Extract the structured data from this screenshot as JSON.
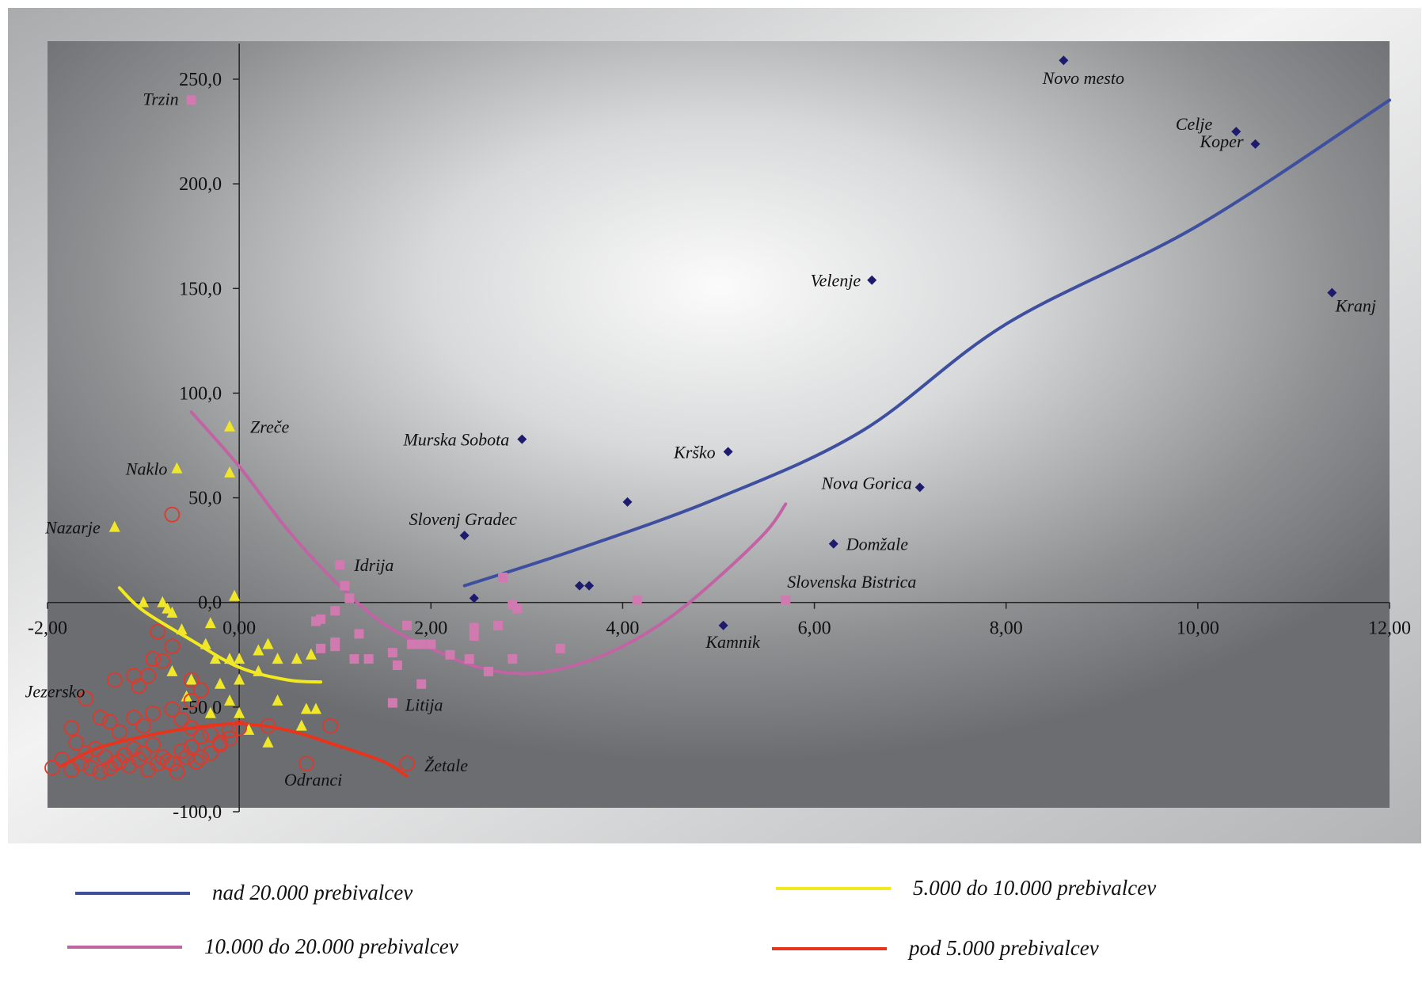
{
  "chart_data": {
    "type": "scatter",
    "title": "",
    "xlabel": "",
    "ylabel": "",
    "xlim": [
      -2,
      12
    ],
    "ylim": [
      -100,
      260
    ],
    "x_ticks": [
      "-2,00",
      "0,00",
      "2,00",
      "4,00",
      "6,00",
      "8,00",
      "10,00",
      "12,00"
    ],
    "y_ticks": [
      "-100,0",
      "-50,0",
      "0,0",
      "50,0",
      "100,0",
      "150,0",
      "200,0",
      "250,0"
    ],
    "background": "gray radial gradient",
    "legend_position": "bottom",
    "series": [
      {
        "name": "nad 20.000 prebivalcev",
        "color": "#3f4fa0",
        "marker": "diamond",
        "marker_color": "#1e1a6e",
        "points": [
          [
            8.6,
            259
          ],
          [
            10.4,
            225
          ],
          [
            10.6,
            219
          ],
          [
            6.6,
            154
          ],
          [
            11.4,
            148
          ],
          [
            2.95,
            78
          ],
          [
            5.1,
            72
          ],
          [
            7.1,
            55
          ],
          [
            4.05,
            48
          ],
          [
            2.35,
            32
          ],
          [
            6.2,
            28
          ],
          [
            3.55,
            8
          ],
          [
            3.65,
            8
          ],
          [
            2.45,
            2
          ],
          [
            5.05,
            -11
          ]
        ],
        "trend": [
          [
            2.35,
            8
          ],
          [
            3.5,
            25
          ],
          [
            5,
            50
          ],
          [
            6.5,
            82
          ],
          [
            8,
            133
          ],
          [
            10,
            180
          ],
          [
            12,
            240
          ]
        ]
      },
      {
        "name": "10.000 do 20.000 prebivalcev",
        "color": "#c263a4",
        "marker": "square",
        "marker_color": "#d07ab0",
        "points": [
          [
            -0.5,
            240
          ],
          [
            1.05,
            18
          ],
          [
            1.1,
            8
          ],
          [
            1.15,
            2
          ],
          [
            1.0,
            -4
          ],
          [
            0.85,
            -8
          ],
          [
            0.8,
            -9
          ],
          [
            1.25,
            -15
          ],
          [
            1.0,
            -19
          ],
          [
            0.85,
            -22
          ],
          [
            1.0,
            -21
          ],
          [
            1.2,
            -27
          ],
          [
            1.35,
            -27
          ],
          [
            1.6,
            -24
          ],
          [
            1.75,
            -11
          ],
          [
            1.65,
            -30
          ],
          [
            1.8,
            -20
          ],
          [
            1.9,
            -20
          ],
          [
            2.0,
            -20
          ],
          [
            2.2,
            -25
          ],
          [
            2.4,
            -27
          ],
          [
            2.45,
            -16
          ],
          [
            2.45,
            -12
          ],
          [
            2.6,
            -33
          ],
          [
            1.9,
            -39
          ],
          [
            1.6,
            -48
          ],
          [
            2.7,
            -11
          ],
          [
            2.85,
            -1
          ],
          [
            2.9,
            -3
          ],
          [
            2.85,
            -27
          ],
          [
            3.35,
            -22
          ],
          [
            2.75,
            12
          ],
          [
            4.15,
            1
          ],
          [
            5.7,
            1
          ]
        ],
        "trend": [
          [
            -0.5,
            91
          ],
          [
            0,
            65
          ],
          [
            0.5,
            35
          ],
          [
            1,
            10
          ],
          [
            1.5,
            -10
          ],
          [
            2,
            -22
          ],
          [
            2.5,
            -31
          ],
          [
            3,
            -34
          ],
          [
            3.5,
            -30
          ],
          [
            4,
            -21
          ],
          [
            4.5,
            -7
          ],
          [
            5,
            12
          ],
          [
            5.5,
            34
          ],
          [
            5.7,
            47
          ]
        ]
      },
      {
        "name": "5.000 do 10.000 prebivalcev",
        "color": "#f2ea1e",
        "marker": "triangle",
        "marker_color": "#f0e62a",
        "points": [
          [
            -1.3,
            36
          ],
          [
            -0.65,
            64
          ],
          [
            -0.1,
            84
          ],
          [
            -0.1,
            62
          ],
          [
            -0.05,
            3
          ],
          [
            -1.0,
            0
          ],
          [
            -0.8,
            0
          ],
          [
            -0.7,
            -5
          ],
          [
            -0.6,
            -13
          ],
          [
            -0.3,
            -10
          ],
          [
            -0.35,
            -20
          ],
          [
            -0.25,
            -27
          ],
          [
            -0.1,
            -27
          ],
          [
            0.0,
            -27
          ],
          [
            0.2,
            -23
          ],
          [
            0.3,
            -20
          ],
          [
            0.4,
            -27
          ],
          [
            0.6,
            -27
          ],
          [
            0.75,
            -25
          ],
          [
            -0.7,
            -33
          ],
          [
            -0.5,
            -37
          ],
          [
            -0.55,
            -45
          ],
          [
            -0.2,
            -39
          ],
          [
            -0.1,
            -47
          ],
          [
            0.0,
            -37
          ],
          [
            0.2,
            -33
          ],
          [
            0.4,
            -47
          ],
          [
            0.7,
            -51
          ],
          [
            0.8,
            -51
          ],
          [
            -0.3,
            -53
          ],
          [
            0.0,
            -53
          ],
          [
            0.1,
            -61
          ],
          [
            0.3,
            -67
          ],
          [
            0.65,
            -59
          ],
          [
            -0.75,
            -3
          ]
        ],
        "trend": [
          [
            -1.25,
            7
          ],
          [
            -1,
            -4
          ],
          [
            -0.5,
            -18
          ],
          [
            0,
            -31
          ],
          [
            0.5,
            -37
          ],
          [
            0.85,
            -38
          ]
        ]
      },
      {
        "name": "pod 5.000 prebivalcev",
        "color": "#e8341c",
        "marker": "circle",
        "marker_color": "#e0382a",
        "points": [
          [
            -0.7,
            42
          ],
          [
            -1.6,
            -46
          ],
          [
            -1.3,
            -37
          ],
          [
            -1.1,
            -35
          ],
          [
            -1.05,
            -40
          ],
          [
            -0.95,
            -35
          ],
          [
            -0.9,
            -27
          ],
          [
            -0.8,
            -28
          ],
          [
            -0.85,
            -14
          ],
          [
            -0.7,
            -21
          ],
          [
            -0.5,
            -37
          ],
          [
            -0.5,
            -47
          ],
          [
            -0.4,
            -42
          ],
          [
            -1.45,
            -55
          ],
          [
            -1.35,
            -57
          ],
          [
            -1.25,
            -62
          ],
          [
            -1.1,
            -55
          ],
          [
            -1.0,
            -59
          ],
          [
            -0.9,
            -53
          ],
          [
            -0.7,
            -51
          ],
          [
            -0.6,
            -56
          ],
          [
            -0.5,
            -60
          ],
          [
            -0.4,
            -64
          ],
          [
            -0.3,
            -63
          ],
          [
            -0.2,
            -67
          ],
          [
            -0.1,
            -61
          ],
          [
            0.0,
            -60
          ],
          [
            -1.75,
            -60
          ],
          [
            -1.7,
            -67
          ],
          [
            -1.6,
            -72
          ],
          [
            -1.5,
            -70
          ],
          [
            -1.4,
            -74
          ],
          [
            -1.3,
            -77
          ],
          [
            -1.2,
            -73
          ],
          [
            -1.1,
            -70
          ],
          [
            -1.0,
            -72
          ],
          [
            -0.9,
            -68
          ],
          [
            -0.8,
            -74
          ],
          [
            -0.7,
            -77
          ],
          [
            -0.6,
            -71
          ],
          [
            -0.5,
            -69
          ],
          [
            -0.4,
            -74
          ],
          [
            -0.3,
            -72
          ],
          [
            -0.2,
            -68
          ],
          [
            -0.1,
            -65
          ],
          [
            -1.95,
            -79
          ],
          [
            -1.85,
            -75
          ],
          [
            -1.75,
            -80
          ],
          [
            -1.65,
            -77
          ],
          [
            -1.55,
            -79
          ],
          [
            -1.45,
            -81
          ],
          [
            -1.35,
            -79
          ],
          [
            -1.25,
            -76
          ],
          [
            -1.15,
            -78
          ],
          [
            -1.05,
            -75
          ],
          [
            -0.95,
            -80
          ],
          [
            -0.85,
            -77
          ],
          [
            -0.75,
            -76
          ],
          [
            -0.65,
            -81
          ],
          [
            -0.55,
            -74
          ],
          [
            -0.45,
            -76
          ],
          [
            0.95,
            -59
          ],
          [
            0.7,
            -77
          ],
          [
            1.75,
            -77
          ],
          [
            0.3,
            -59
          ]
        ],
        "trend": [
          [
            -1.85,
            -78
          ],
          [
            -1.5,
            -70
          ],
          [
            -1,
            -64
          ],
          [
            -0.5,
            -60
          ],
          [
            0,
            -58
          ],
          [
            0.5,
            -61
          ],
          [
            1,
            -68
          ],
          [
            1.5,
            -76
          ],
          [
            1.75,
            -83
          ]
        ]
      }
    ],
    "annotations": [
      {
        "text": "Novo mesto",
        "x": 8.6,
        "y": 259
      },
      {
        "text": "Celje",
        "x": 10.4,
        "y": 225
      },
      {
        "text": "Koper",
        "x": 10.6,
        "y": 219
      },
      {
        "text": "Velenje",
        "x": 6.6,
        "y": 154
      },
      {
        "text": "Kranj",
        "x": 11.4,
        "y": 148
      },
      {
        "text": "Murska Sobota",
        "x": 2.95,
        "y": 78
      },
      {
        "text": "Krško",
        "x": 5.1,
        "y": 72
      },
      {
        "text": "Nova Gorica",
        "x": 7.1,
        "y": 55
      },
      {
        "text": "Slovenj Gradec",
        "x": 2.35,
        "y": 32
      },
      {
        "text": "Domžale",
        "x": 6.2,
        "y": 28
      },
      {
        "text": "Slovenska Bistrica",
        "x": 5.7,
        "y": 1
      },
      {
        "text": "Kamnik",
        "x": 5.05,
        "y": -11
      },
      {
        "text": "Trzin",
        "x": -0.5,
        "y": 240
      },
      {
        "text": "Idrija",
        "x": 1.05,
        "y": 18
      },
      {
        "text": "Litija",
        "x": 1.6,
        "y": -48
      },
      {
        "text": "Žetale",
        "x": 1.75,
        "y": -77
      },
      {
        "text": "Zreče",
        "x": -0.1,
        "y": 84
      },
      {
        "text": "Naklo",
        "x": -0.65,
        "y": 64
      },
      {
        "text": "Nazarje",
        "x": -1.3,
        "y": 36
      },
      {
        "text": "Jezersko",
        "x": -1.6,
        "y": -46
      },
      {
        "text": "Odranci",
        "x": 0.7,
        "y": -77
      }
    ]
  }
}
